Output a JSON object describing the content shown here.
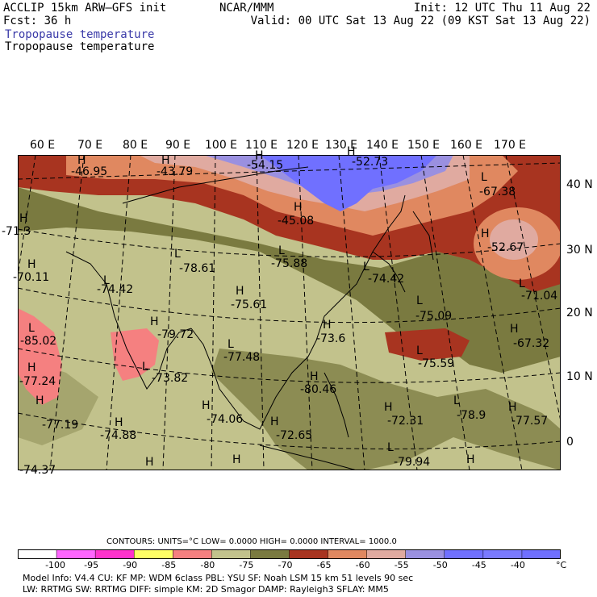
{
  "header": {
    "left1": "ACCLIP 15km ARW–GFS init",
    "left2": "Fcst:   36 h",
    "center": "NCAR/MMM",
    "right1": "Init: 12 UTC Thu 11 Aug 22",
    "right2": "Valid: 00 UTC Sat 13 Aug 22 (09 KST Sat 13 Aug 22)",
    "title_blue": "Tropopause temperature",
    "title_black": "Tropopause temperature"
  },
  "lon_labels": [
    "60 E",
    "70 E",
    "80 E",
    "90 E",
    "100 E",
    "110 E",
    "120 E",
    "130 E",
    "140 E",
    "150 E",
    "160 E",
    "170 E"
  ],
  "lat_labels": [
    "40 N",
    "30 N",
    "20 N",
    "10 N",
    "0"
  ],
  "map_labels": [
    {
      "m": "H",
      "v": "-46.95"
    },
    {
      "m": "H",
      "v": "-43.79"
    },
    {
      "m": "H",
      "v": "-54.15"
    },
    {
      "m": "H",
      "v": "-52.73"
    },
    {
      "m": "L",
      "v": "-67.38"
    },
    {
      "m": "H",
      "v": "-71.3"
    },
    {
      "m": "L",
      "v": "-78.61"
    },
    {
      "m": "H",
      "v": "-45.08"
    },
    {
      "m": "L",
      "v": "-75.88"
    },
    {
      "m": "H",
      "v": "-52.67"
    },
    {
      "m": "H",
      "v": "-70.11"
    },
    {
      "m": "L",
      "v": "-74.42"
    },
    {
      "m": "L",
      "v": "-74.42"
    },
    {
      "m": "H",
      "v": "-75.61"
    },
    {
      "m": "L",
      "v": "-71.04"
    },
    {
      "m": "L",
      "v": "-75.09"
    },
    {
      "m": "L",
      "v": "-85.02"
    },
    {
      "m": "H",
      "v": "-79.72"
    },
    {
      "m": "H",
      "v": "-73.6"
    },
    {
      "m": "H",
      "v": "-67.32"
    },
    {
      "m": "L",
      "v": "-77.48"
    },
    {
      "m": "L",
      "v": "-75.59"
    },
    {
      "m": "H",
      "v": "-77.24"
    },
    {
      "m": "L",
      "v": "-73.82"
    },
    {
      "m": "H",
      "v": "-80.46"
    },
    {
      "m": "H",
      "v": "-77.19"
    },
    {
      "m": "H",
      "v": "-74.06"
    },
    {
      "m": "H",
      "v": "-72.31"
    },
    {
      "m": "L",
      "v": "-78.9"
    },
    {
      "m": "H",
      "v": "-77.57"
    },
    {
      "m": "H",
      "v": "-74.88"
    },
    {
      "m": "H",
      "v": "-72.65"
    },
    {
      "m": "L",
      "v": "-79.94"
    },
    {
      "m": "H",
      "v": "-74.37"
    }
  ],
  "contours_line": "CONTOURS:  UNITS=°C  LOW=  0.0000        HIGH=  0.0000        INTERVAL=    1000.0",
  "legend": {
    "ticks": [
      "-100",
      "-95",
      "-90",
      "-85",
      "-80",
      "-75",
      "-70",
      "-65",
      "-60",
      "-55",
      "-50",
      "-45",
      "-40"
    ],
    "unit": "°C",
    "colors": [
      "#ffffff",
      "#ff66ff",
      "#ff33cc",
      "#ffff66",
      "#f58080",
      "#c2c28c",
      "#7a7a40",
      "#a83420",
      "#e08860",
      "#e0aaa0",
      "#9a90e0",
      "#7070ff",
      "#7a7aff",
      "#6f6fff"
    ]
  },
  "footer": {
    "line1": "Model Info: V4.4      CU: KF        MP: WDM 6class  PBL: YSU       SF: Noah LSM     15 km    51 levels   90 sec",
    "line2": "                      LW: RRTMG    SW: RRTMG   DIFF: simple KM: 2D Smagor DAMP: Rayleigh3  SFLAY: MM5"
  },
  "colors": {
    "warm_brown": "#a83420",
    "orange": "#e08860",
    "light_pink": "#e0aaa0",
    "lavender": "#9a90e0",
    "blue": "#7070ff",
    "olive": "#7a7a40",
    "khaki": "#c2c28c",
    "salmon": "#f58080"
  }
}
